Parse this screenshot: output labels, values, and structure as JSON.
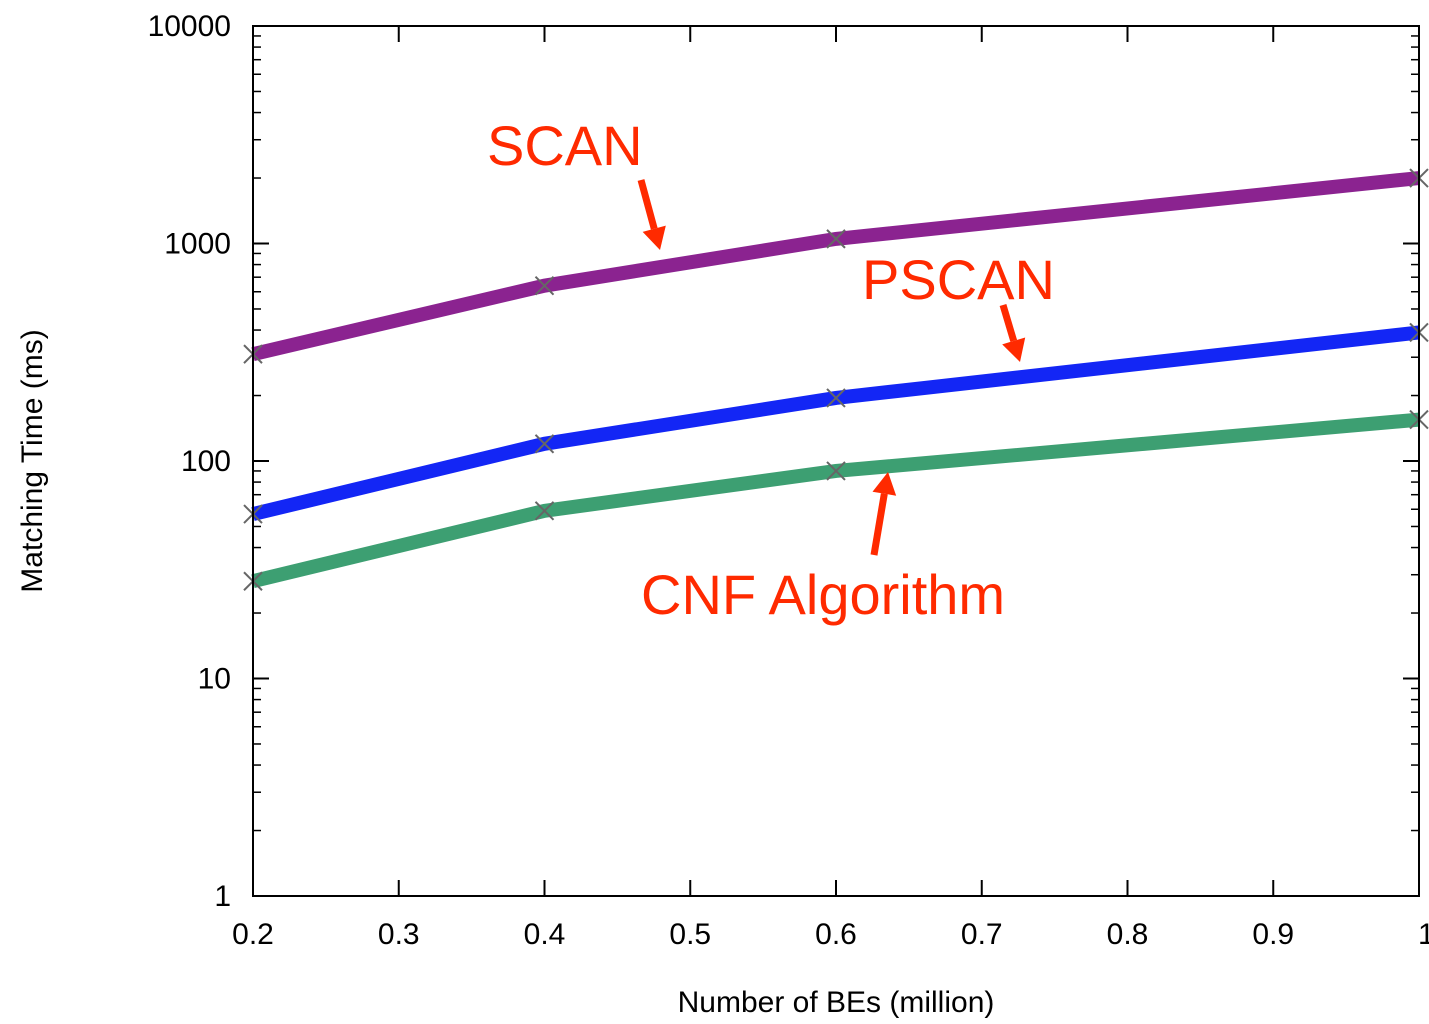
{
  "chart_data": {
    "type": "line",
    "xlabel": "Number of BEs (million)",
    "ylabel": "Matching Time (ms)",
    "xlim": [
      0.2,
      1.0
    ],
    "ylim": [
      1,
      10000
    ],
    "yscale": "log",
    "grid": false,
    "x_ticks": [
      0.2,
      0.3,
      0.4,
      0.5,
      0.6,
      0.7,
      0.8,
      0.9,
      1.0
    ],
    "x_tick_labels": [
      "0.2",
      "0.3",
      "0.4",
      "0.5",
      "0.6",
      "0.7",
      "0.8",
      "0.9",
      "1"
    ],
    "y_ticks": [
      1,
      10,
      100,
      1000,
      10000
    ],
    "y_tick_labels": [
      "1",
      "10",
      "100",
      "1000",
      "10000"
    ],
    "series": [
      {
        "name": "SCAN",
        "color": "#8b2390",
        "x": [
          0.2,
          0.4,
          0.6,
          1.0
        ],
        "y": [
          310,
          640,
          1050,
          2000
        ]
      },
      {
        "name": "PSCAN",
        "color": "#1326f5",
        "x": [
          0.2,
          0.4,
          0.6,
          1.0
        ],
        "y": [
          57,
          120,
          195,
          390
        ]
      },
      {
        "name": "CNF Algorithm",
        "color": "#3d9f72",
        "x": [
          0.2,
          0.4,
          0.6,
          1.0
        ],
        "y": [
          28,
          59,
          90,
          155
        ]
      }
    ],
    "annotations": [
      {
        "text": "SCAN",
        "series": "SCAN",
        "color": "#ff2a00"
      },
      {
        "text": "PSCAN",
        "series": "PSCAN",
        "color": "#ff2a00"
      },
      {
        "text": "CNF Algorithm",
        "series": "CNF Algorithm",
        "color": "#ff2a00"
      }
    ]
  }
}
